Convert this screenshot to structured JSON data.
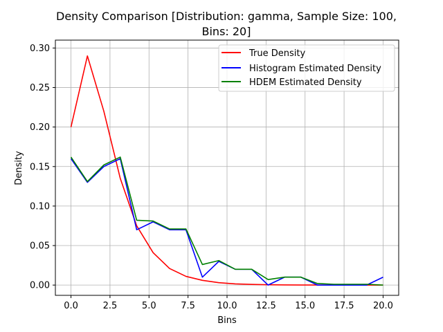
{
  "chart_data": {
    "type": "line",
    "title_lines": [
      "Density Comparison [Distribution: gamma, Sample Size: 100,",
      "Bins: 20]"
    ],
    "xlabel": "Bins",
    "ylabel": "Density",
    "xlim": [
      -1.0,
      21.0
    ],
    "ylim": [
      -0.013,
      0.31
    ],
    "x_ticks": [
      0.0,
      2.5,
      5.0,
      7.5,
      10.0,
      12.5,
      15.0,
      17.5,
      20.0
    ],
    "x_tick_labels": [
      "0.0",
      "2.5",
      "5.0",
      "7.5",
      "10.0",
      "12.5",
      "15.0",
      "17.5",
      "20.0"
    ],
    "y_ticks": [
      0.0,
      0.05,
      0.1,
      0.15,
      0.2,
      0.25,
      0.3
    ],
    "y_tick_labels": [
      "0.00",
      "0.05",
      "0.10",
      "0.15",
      "0.20",
      "0.25",
      "0.30"
    ],
    "grid": true,
    "legend_position": "upper-right",
    "x": [
      0.0,
      1.0526,
      2.1053,
      3.1579,
      4.2105,
      5.2632,
      6.3158,
      7.3684,
      8.4211,
      9.4737,
      10.5263,
      11.5789,
      12.6316,
      13.6842,
      14.7368,
      15.7895,
      16.8421,
      17.8947,
      18.9474,
      20.0
    ],
    "series": [
      {
        "name": "True Density",
        "color": "#ff0000",
        "values": [
          0.2,
          0.29,
          0.22,
          0.135,
          0.075,
          0.041,
          0.021,
          0.011,
          0.006,
          0.003,
          0.0015,
          0.0008,
          0.0004,
          0.0002,
          0.0001,
          5e-05,
          2e-05,
          1e-05,
          0.0,
          0.0
        ]
      },
      {
        "name": "Histogram Estimated Density",
        "color": "#0000ff",
        "values": [
          0.16,
          0.13,
          0.15,
          0.16,
          0.07,
          0.08,
          0.07,
          0.07,
          0.01,
          0.03,
          0.02,
          0.02,
          0.0,
          0.01,
          0.01,
          0.0,
          0.0,
          0.0,
          0.0,
          0.01
        ]
      },
      {
        "name": "HDEM Estimated Density",
        "color": "#008000",
        "values": [
          0.162,
          0.131,
          0.152,
          0.162,
          0.082,
          0.081,
          0.071,
          0.071,
          0.026,
          0.031,
          0.02,
          0.02,
          0.007,
          0.01,
          0.01,
          0.002,
          0.001,
          0.001,
          0.001,
          0.0
        ]
      }
    ]
  }
}
